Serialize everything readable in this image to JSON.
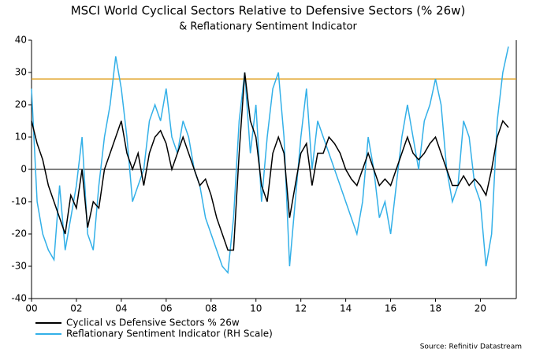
{
  "chart_data": {
    "type": "line",
    "title": "MSCI World Cyclical Sectors Relative to Defensive Sectors (% 26w)",
    "subtitle": "& Reflationary Sentiment Indicator",
    "source": "Source: Refinitiv Datastream",
    "x": [
      2000,
      2000.25,
      2000.5,
      2000.75,
      2001,
      2001.25,
      2001.5,
      2001.75,
      2002,
      2002.25,
      2002.5,
      2002.75,
      2003,
      2003.25,
      2003.5,
      2003.75,
      2004,
      2004.25,
      2004.5,
      2004.75,
      2005,
      2005.25,
      2005.5,
      2005.75,
      2006,
      2006.25,
      2006.5,
      2006.75,
      2007,
      2007.25,
      2007.5,
      2007.75,
      2008,
      2008.25,
      2008.5,
      2008.75,
      2009,
      2009.25,
      2009.5,
      2009.75,
      2010,
      2010.25,
      2010.5,
      2010.75,
      2011,
      2011.25,
      2011.5,
      2011.75,
      2012,
      2012.25,
      2012.5,
      2012.75,
      2013,
      2013.25,
      2013.5,
      2013.75,
      2014,
      2014.25,
      2014.5,
      2014.75,
      2015,
      2015.25,
      2015.5,
      2015.75,
      2016,
      2016.25,
      2016.5,
      2016.75,
      2017,
      2017.25,
      2017.5,
      2017.75,
      2018,
      2018.25,
      2018.5,
      2018.75,
      2019,
      2019.25,
      2019.5,
      2019.75,
      2020,
      2020.25,
      2020.5,
      2020.75,
      2021,
      2021.25
    ],
    "series": [
      {
        "name": "Cyclical vs Defensive Sectors % 26w",
        "color": "#000000",
        "values": [
          15,
          8,
          3,
          -5,
          -10,
          -15,
          -20,
          -8,
          -12,
          0,
          -18,
          -10,
          -12,
          0,
          5,
          10,
          15,
          5,
          0,
          5,
          -5,
          5,
          10,
          12,
          8,
          0,
          5,
          10,
          5,
          0,
          -5,
          -3,
          -8,
          -15,
          -20,
          -25,
          -25,
          5,
          30,
          15,
          10,
          -5,
          -10,
          5,
          10,
          5,
          -15,
          -5,
          5,
          8,
          -5,
          5,
          5,
          10,
          8,
          5,
          0,
          -3,
          -5,
          0,
          5,
          0,
          -5,
          -3,
          -5,
          0,
          5,
          10,
          5,
          3,
          5,
          8,
          10,
          5,
          0,
          -5,
          -5,
          -2,
          -5,
          -3,
          -5,
          -8,
          0,
          10,
          15,
          13
        ]
      },
      {
        "name": "Reflationary Sentiment Indicator (RH Scale)",
        "color": "#33b0e8",
        "axis": "y2",
        "values": [
          25,
          -10,
          -20,
          -25,
          -28,
          -5,
          -25,
          -15,
          -5,
          10,
          -20,
          -25,
          -5,
          10,
          20,
          35,
          25,
          10,
          -10,
          -5,
          0,
          15,
          20,
          15,
          25,
          10,
          5,
          15,
          10,
          0,
          -5,
          -15,
          -20,
          -25,
          -30,
          -32,
          -15,
          15,
          30,
          5,
          20,
          -10,
          10,
          25,
          30,
          10,
          -30,
          -10,
          10,
          25,
          0,
          15,
          10,
          5,
          0,
          -5,
          -10,
          -15,
          -20,
          -10,
          10,
          0,
          -15,
          -10,
          -20,
          -5,
          10,
          20,
          10,
          0,
          15,
          20,
          28,
          20,
          0,
          -10,
          -5,
          15,
          10,
          -5,
          -10,
          -30,
          -20,
          15,
          30,
          38
        ]
      }
    ],
    "xlim": [
      2000,
      2021.6
    ],
    "xticks": [
      {
        "value": 2000,
        "label": "00"
      },
      {
        "value": 2002,
        "label": "02"
      },
      {
        "value": 2004,
        "label": "04"
      },
      {
        "value": 2006,
        "label": "06"
      },
      {
        "value": 2008,
        "label": "08"
      },
      {
        "value": 2010,
        "label": "10"
      },
      {
        "value": 2012,
        "label": "12"
      },
      {
        "value": 2014,
        "label": "14"
      },
      {
        "value": 2016,
        "label": "16"
      },
      {
        "value": 2018,
        "label": "18"
      },
      {
        "value": 2020,
        "label": "20"
      }
    ],
    "ylim": [
      -40,
      40
    ],
    "yticks": [
      -40,
      -30,
      -20,
      -10,
      0,
      10,
      20,
      30,
      40
    ],
    "y2lim": [
      -40,
      40
    ],
    "reference_line": {
      "value": 28,
      "axis": "y2",
      "color": "#e0a020"
    },
    "legend": "bottom-left"
  }
}
